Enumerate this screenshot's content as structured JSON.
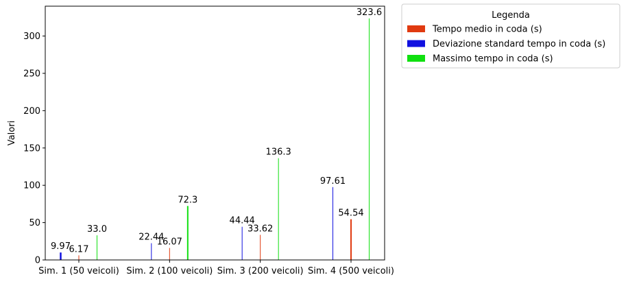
{
  "chart_data": {
    "type": "bar",
    "categories": [
      "Sim. 1 (50 veicoli)",
      "Sim. 2 (100 veicoli)",
      "Sim. 3 (200 veicoli)",
      "Sim. 4 (500 veicoli)"
    ],
    "series": [
      {
        "name": "Tempo medio in coda (s)",
        "color": "#e03a10",
        "values": [
          6.17,
          16.07,
          33.62,
          54.54
        ],
        "labels": [
          "6.17",
          "16.07",
          "33.62",
          "54.54"
        ]
      },
      {
        "name": "Deviazione standard tempo in coda (s)",
        "color": "#1010e0",
        "values": [
          9.97,
          22.44,
          44.44,
          97.61
        ],
        "labels": [
          "9.97",
          "22.44",
          "44.44",
          "97.61"
        ]
      },
      {
        "name": "Massimo tempo in coda (s)",
        "color": "#10e010",
        "values": [
          33.0,
          72.3,
          136.3,
          323.6
        ],
        "labels": [
          "33.0",
          "72.3",
          "136.3",
          "323.6"
        ]
      }
    ],
    "xlabel": "",
    "ylabel": "Valori",
    "ylim": [
      0,
      340
    ],
    "yticks": [
      0,
      50,
      100,
      150,
      200,
      250,
      300
    ],
    "grid": false,
    "legend": {
      "title": "Legenda",
      "placement": "outside-top-right"
    }
  }
}
